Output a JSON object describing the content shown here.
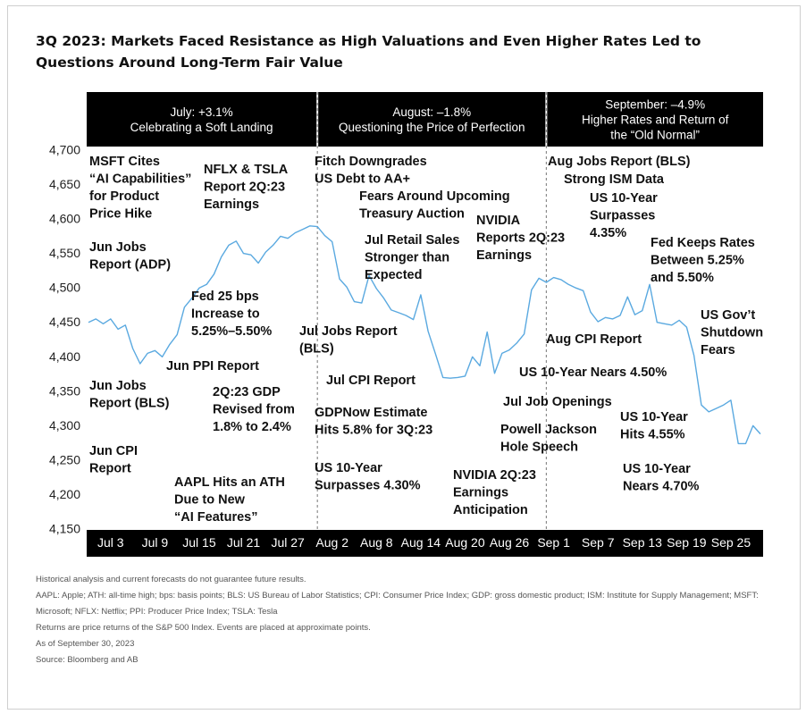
{
  "title": "3Q 2023: Markets Faced Resistance as High Valuations and Even Higher Rates Led to Questions Around Long-Term Fair Value",
  "chart_data": {
    "type": "line",
    "title": "3Q 2023: Markets Faced Resistance as High Valuations and Even Higher Rates Led to Questions Around Long-Term Fair Value",
    "xlabel": "",
    "ylabel": "",
    "ylim": [
      4150,
      4700
    ],
    "yticks": [
      "4,700",
      "4,650",
      "4,600",
      "4,550",
      "4,500",
      "4,450",
      "4,400",
      "4,350",
      "4,300",
      "4,250",
      "4,200",
      "4,150"
    ],
    "xticks": [
      "Jul 3",
      "Jul 9",
      "Jul 15",
      "Jul 21",
      "Jul 27",
      "Aug 2",
      "Aug 8",
      "Aug 14",
      "Aug 20",
      "Aug 26",
      "Sep 1",
      "Sep 7",
      "Sep 13",
      "Sep 19",
      "Sep 25"
    ],
    "x_start": "2023-06-30",
    "x_end": "2023-09-29",
    "grid": false,
    "periods": [
      {
        "lines": [
          "July: +3.1%",
          "Celebrating a Soft Landing"
        ],
        "start": "2023-06-30",
        "end": "2023-07-31"
      },
      {
        "lines": [
          "August: –1.8%",
          "Questioning the Price of Perfection"
        ],
        "start": "2023-07-31",
        "end": "2023-08-31"
      },
      {
        "lines": [
          "September: –4.9%",
          "Higher Rates and Return of",
          "the “Old Normal”"
        ],
        "start": "2023-08-31",
        "end": "2023-09-29"
      }
    ],
    "series": [
      {
        "name": "",
        "color": "#5aa9e0",
        "points": [
          [
            "2023-06-30",
            4450
          ],
          [
            "2023-07-01",
            4455
          ],
          [
            "2023-07-02",
            4448
          ],
          [
            "2023-07-03",
            4455
          ],
          [
            "2023-07-04",
            4440
          ],
          [
            "2023-07-05",
            4446
          ],
          [
            "2023-07-06",
            4412
          ],
          [
            "2023-07-07",
            4390
          ],
          [
            "2023-07-08",
            4405
          ],
          [
            "2023-07-09",
            4409
          ],
          [
            "2023-07-10",
            4400
          ],
          [
            "2023-07-11",
            4418
          ],
          [
            "2023-07-12",
            4432
          ],
          [
            "2023-07-13",
            4472
          ],
          [
            "2023-07-14",
            4485
          ],
          [
            "2023-07-15",
            4500
          ],
          [
            "2023-07-16",
            4505
          ],
          [
            "2023-07-17",
            4520
          ],
          [
            "2023-07-18",
            4545
          ],
          [
            "2023-07-19",
            4562
          ],
          [
            "2023-07-20",
            4568
          ],
          [
            "2023-07-21",
            4550
          ],
          [
            "2023-07-22",
            4548
          ],
          [
            "2023-07-23",
            4536
          ],
          [
            "2023-07-24",
            4552
          ],
          [
            "2023-07-25",
            4562
          ],
          [
            "2023-07-26",
            4575
          ],
          [
            "2023-07-27",
            4572
          ],
          [
            "2023-07-28",
            4580
          ],
          [
            "2023-07-29",
            4585
          ],
          [
            "2023-07-30",
            4590
          ],
          [
            "2023-07-31",
            4589
          ],
          [
            "2023-08-01",
            4576
          ],
          [
            "2023-08-02",
            4567
          ],
          [
            "2023-08-03",
            4513
          ],
          [
            "2023-08-04",
            4501
          ],
          [
            "2023-08-05",
            4480
          ],
          [
            "2023-08-06",
            4478
          ],
          [
            "2023-08-07",
            4518
          ],
          [
            "2023-08-08",
            4499
          ],
          [
            "2023-08-09",
            4485
          ],
          [
            "2023-08-10",
            4468
          ],
          [
            "2023-08-11",
            4464
          ],
          [
            "2023-08-12",
            4460
          ],
          [
            "2023-08-13",
            4454
          ],
          [
            "2023-08-14",
            4490
          ],
          [
            "2023-08-15",
            4437
          ],
          [
            "2023-08-16",
            4404
          ],
          [
            "2023-08-17",
            4370
          ],
          [
            "2023-08-18",
            4369
          ],
          [
            "2023-08-19",
            4370
          ],
          [
            "2023-08-20",
            4372
          ],
          [
            "2023-08-21",
            4400
          ],
          [
            "2023-08-22",
            4387
          ],
          [
            "2023-08-23",
            4436
          ],
          [
            "2023-08-24",
            4376
          ],
          [
            "2023-08-25",
            4405
          ],
          [
            "2023-08-26",
            4410
          ],
          [
            "2023-08-27",
            4420
          ],
          [
            "2023-08-28",
            4433
          ],
          [
            "2023-08-29",
            4497
          ],
          [
            "2023-08-30",
            4514
          ],
          [
            "2023-08-31",
            4508
          ],
          [
            "2023-09-01",
            4515
          ],
          [
            "2023-09-02",
            4512
          ],
          [
            "2023-09-03",
            4505
          ],
          [
            "2023-09-04",
            4500
          ],
          [
            "2023-09-05",
            4496
          ],
          [
            "2023-09-06",
            4465
          ],
          [
            "2023-09-07",
            4451
          ],
          [
            "2023-09-08",
            4457
          ],
          [
            "2023-09-09",
            4455
          ],
          [
            "2023-09-10",
            4460
          ],
          [
            "2023-09-11",
            4487
          ],
          [
            "2023-09-12",
            4461
          ],
          [
            "2023-09-13",
            4467
          ],
          [
            "2023-09-14",
            4505
          ],
          [
            "2023-09-15",
            4450
          ],
          [
            "2023-09-16",
            4448
          ],
          [
            "2023-09-17",
            4446
          ],
          [
            "2023-09-18",
            4453
          ],
          [
            "2023-09-19",
            4443
          ],
          [
            "2023-09-20",
            4402
          ],
          [
            "2023-09-21",
            4330
          ],
          [
            "2023-09-22",
            4320
          ],
          [
            "2023-09-23",
            4325
          ],
          [
            "2023-09-24",
            4330
          ],
          [
            "2023-09-25",
            4337
          ],
          [
            "2023-09-26",
            4274
          ],
          [
            "2023-09-27",
            4274
          ],
          [
            "2023-09-28",
            4300
          ],
          [
            "2023-09-29",
            4288
          ]
        ]
      }
    ],
    "annotations": [
      {
        "lines": [
          "MSFT Cites",
          "“AI Capabilities”",
          "for Product",
          "Price Hike"
        ],
        "date": "2023-07-18"
      },
      {
        "lines": [
          "NFLX & TSLA",
          "Report 2Q:23",
          "Earnings"
        ],
        "date": "2023-07-19"
      },
      {
        "lines": [
          "Jun Jobs",
          "Report (ADP)"
        ],
        "date": "2023-07-06"
      },
      {
        "lines": [
          "Fed 25 bps",
          "Increase to",
          "5.25%–5.50%"
        ],
        "date": "2023-07-26"
      },
      {
        "lines": [
          "Jun PPI Report"
        ],
        "date": "2023-07-13"
      },
      {
        "lines": [
          "Jun Jobs",
          "Report (BLS)"
        ],
        "date": "2023-07-07"
      },
      {
        "lines": [
          "2Q:23 GDP",
          "Revised from",
          "1.8% to 2.4%"
        ],
        "date": "2023-07-27"
      },
      {
        "lines": [
          "Jun CPI",
          "Report"
        ],
        "date": "2023-07-12"
      },
      {
        "lines": [
          "AAPL Hits an ATH",
          "Due to New",
          "“AI Features”"
        ],
        "date": "2023-07-31"
      },
      {
        "lines": [
          "Fitch Downgrades",
          "US Debt to AA+"
        ],
        "date": "2023-08-01"
      },
      {
        "lines": [
          "Fears Around Upcoming",
          "Treasury Auction"
        ],
        "date": "2023-08-03"
      },
      {
        "lines": [
          "Jul Retail Sales",
          "Stronger than",
          "Expected"
        ],
        "date": "2023-08-15"
      },
      {
        "lines": [
          "NVIDIA",
          "Reports 2Q:23",
          "Earnings"
        ],
        "date": "2023-08-23"
      },
      {
        "lines": [
          "Jul Jobs Report",
          "(BLS)"
        ],
        "date": "2023-08-04"
      },
      {
        "lines": [
          "Jul CPI Report"
        ],
        "date": "2023-08-10"
      },
      {
        "lines": [
          "GDPNow Estimate",
          "Hits 5.8% for 3Q:23"
        ],
        "date": "2023-08-16"
      },
      {
        "lines": [
          "US 10-Year",
          "Surpasses 4.30%"
        ],
        "date": "2023-08-17"
      },
      {
        "lines": [
          "NVIDIA 2Q:23",
          "Earnings",
          "Anticipation"
        ],
        "date": "2023-08-21"
      },
      {
        "lines": [
          "Jul Job Openings"
        ],
        "date": "2023-08-29"
      },
      {
        "lines": [
          "Powell Jackson",
          "Hole Speech"
        ],
        "date": "2023-08-25"
      },
      {
        "lines": [
          "Aug Jobs Report (BLS)"
        ],
        "date": "2023-09-01"
      },
      {
        "lines": [
          "Strong ISM Data"
        ],
        "date": "2023-09-06"
      },
      {
        "lines": [
          "US 10-Year",
          "Surpasses",
          "4.35%"
        ],
        "date": "2023-09-07"
      },
      {
        "lines": [
          "Fed Keeps Rates",
          "Between 5.25%",
          "and 5.50%"
        ],
        "date": "2023-09-20"
      },
      {
        "lines": [
          "Aug CPI Report"
        ],
        "date": "2023-09-13"
      },
      {
        "lines": [
          "US 10-Year Nears 4.50%"
        ],
        "date": "2023-09-21"
      },
      {
        "lines": [
          "US Gov’t",
          "Shutdown",
          "Fears"
        ],
        "date": "2023-09-28"
      },
      {
        "lines": [
          "US 10-Year",
          "Hits 4.55%"
        ],
        "date": "2023-09-25"
      },
      {
        "lines": [
          "US 10-Year",
          "Nears 4.70%"
        ],
        "date": "2023-09-27"
      }
    ]
  },
  "notes": [
    "Historical analysis and current forecasts do not guarantee future results.",
    "AAPL: Apple; ATH: all-time high; bps: basis points; BLS: US Bureau of Labor Statistics; CPI: Consumer Price Index; GDP: gross domestic product; ISM: Institute for Supply Management; MSFT:",
    "Microsoft; NFLX: Netflix; PPI: Producer Price Index; TSLA: Tesla",
    "Returns are price returns of the S&P 500 Index. Events are placed at approximate points.",
    "As of September 30, 2023",
    "Source: Bloomberg and AB"
  ]
}
